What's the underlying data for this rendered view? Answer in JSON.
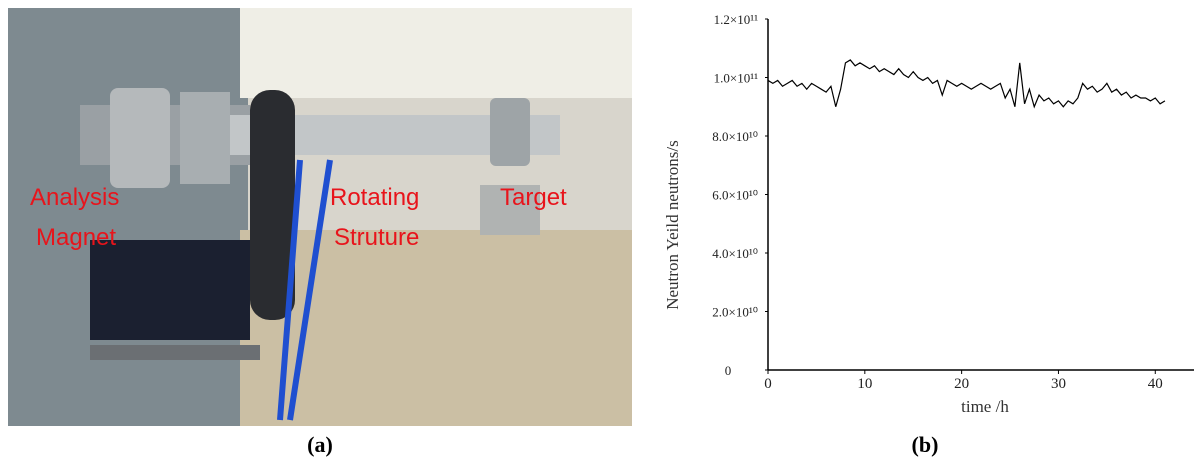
{
  "photo": {
    "labels": [
      "Analysis",
      "Magnet",
      "Rotating",
      "Struture",
      "Target"
    ],
    "caption": "(a)"
  },
  "chart_caption": "(b)",
  "chart_data": {
    "type": "line",
    "y_label": "Neutron Yeild neutrons/s",
    "x_label": "time /h",
    "xlim": [
      0,
      44
    ],
    "xticks": [
      0,
      10,
      20,
      30,
      40
    ],
    "ylim": [
      0,
      120000000000
    ],
    "yticks": [
      0,
      {
        "value": 20000000000,
        "label": "2.0×10¹⁰"
      },
      {
        "value": 40000000000,
        "label": "4.0×10¹⁰"
      },
      {
        "value": 60000000000,
        "label": "6.0×10¹⁰"
      },
      {
        "value": 80000000000,
        "label": "8.0×10¹⁰"
      },
      {
        "value": 100000000000,
        "label": "1.0×10¹¹"
      },
      {
        "value": 120000000000,
        "label": "1.2×10¹¹"
      }
    ],
    "color": "#000000",
    "x": [
      0,
      0.5,
      1,
      1.5,
      2,
      2.5,
      3,
      3.5,
      4,
      4.5,
      5,
      5.5,
      6,
      6.5,
      7,
      7.5,
      8,
      8.5,
      9,
      9.5,
      10,
      10.5,
      11,
      11.5,
      12,
      12.5,
      13,
      13.5,
      14,
      14.5,
      15,
      15.5,
      16,
      16.5,
      17,
      17.5,
      18,
      18.5,
      19,
      19.5,
      20,
      20.5,
      21,
      21.5,
      22,
      22.5,
      23,
      23.5,
      24,
      24.5,
      25,
      25.5,
      26,
      26.5,
      27,
      27.5,
      28,
      28.5,
      29,
      29.5,
      30,
      30.5,
      31,
      31.5,
      32,
      32.5,
      33,
      33.5,
      34,
      34.5,
      35,
      35.5,
      36,
      36.5,
      37,
      37.5,
      38,
      38.5,
      39,
      39.5,
      40,
      40.5,
      41
    ],
    "values": [
      99000000000.0,
      98000000000.0,
      99000000000.0,
      97000000000.0,
      98000000000.0,
      99000000000.0,
      97000000000.0,
      98000000000.0,
      96000000000.0,
      98000000000.0,
      97000000000.0,
      96000000000.0,
      95000000000.0,
      97000000000.0,
      90000000000.0,
      96000000000.0,
      105000000000.0,
      106000000000.0,
      104000000000.0,
      105000000000.0,
      104000000000.0,
      103000000000.0,
      104000000000.0,
      102000000000.0,
      103000000000.0,
      102000000000.0,
      101000000000.0,
      103000000000.0,
      101000000000.0,
      100000000000.0,
      102000000000.0,
      100000000000.0,
      99000000000.0,
      100000000000.0,
      98000000000.0,
      99000000000.0,
      94000000000.0,
      99000000000.0,
      98000000000.0,
      97000000000.0,
      98000000000.0,
      97000000000.0,
      96000000000.0,
      97000000000.0,
      98000000000.0,
      97000000000.0,
      96000000000.0,
      97000000000.0,
      98000000000.0,
      93000000000.0,
      96000000000.0,
      90000000000.0,
      105000000000.0,
      91000000000.0,
      96000000000.0,
      90000000000.0,
      94000000000.0,
      92000000000.0,
      93000000000.0,
      91000000000.0,
      92000000000.0,
      90000000000.0,
      92000000000.0,
      91000000000.0,
      93000000000.0,
      98000000000.0,
      96000000000.0,
      97000000000.0,
      95000000000.0,
      96000000000.0,
      98000000000.0,
      95000000000.0,
      96000000000.0,
      94000000000.0,
      95000000000.0,
      93000000000.0,
      94000000000.0,
      93000000000.0,
      93000000000.0,
      92000000000.0,
      93000000000.0,
      91000000000.0,
      92000000000.0
    ]
  }
}
